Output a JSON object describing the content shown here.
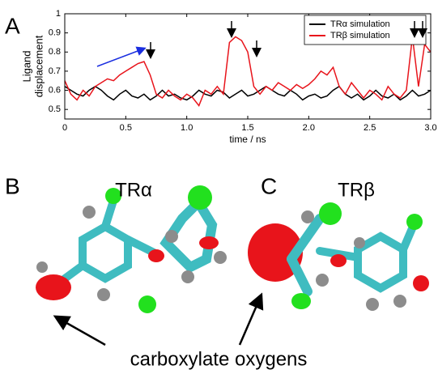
{
  "panel_labels": [
    "A",
    "B",
    "C"
  ],
  "chart_data": {
    "type": "line",
    "xlabel": "time / ns",
    "ylabel": [
      "Ligand",
      "displacement"
    ],
    "xlim": [
      0,
      3.0
    ],
    "ylim": [
      0.45,
      1.0
    ],
    "xticks": [
      0,
      0.5,
      {
        "value": 1,
        "label": "1.0"
      },
      1.5,
      {
        "value": 2,
        "label": "2.0"
      },
      2.5,
      {
        "value": 3,
        "label": "3.0"
      }
    ],
    "yticks": [
      0.5,
      0.6,
      0.7,
      0.8,
      0.9,
      1
    ],
    "legend": "upper right",
    "x": [
      0,
      0.05,
      0.1,
      0.15,
      0.2,
      0.25,
      0.3,
      0.35,
      0.4,
      0.45,
      0.5,
      0.55,
      0.6,
      0.65,
      0.7,
      0.75,
      0.8,
      0.85,
      0.9,
      0.95,
      1,
      1.05,
      1.1,
      1.15,
      1.2,
      1.25,
      1.3,
      1.35,
      1.4,
      1.45,
      1.5,
      1.55,
      1.6,
      1.65,
      1.7,
      1.75,
      1.8,
      1.85,
      1.9,
      1.95,
      2,
      2.05,
      2.1,
      2.15,
      2.2,
      2.25,
      2.3,
      2.35,
      2.4,
      2.45,
      2.5,
      2.55,
      2.6,
      2.65,
      2.7,
      2.75,
      2.8,
      2.85,
      2.9,
      2.95,
      3
    ],
    "series": [
      {
        "name": "TRα simulation",
        "color": "#000000",
        "values": [
          0.62,
          0.6,
          0.58,
          0.57,
          0.6,
          0.62,
          0.6,
          0.57,
          0.55,
          0.58,
          0.6,
          0.57,
          0.56,
          0.58,
          0.55,
          0.57,
          0.6,
          0.57,
          0.58,
          0.56,
          0.55,
          0.57,
          0.6,
          0.58,
          0.57,
          0.6,
          0.59,
          0.56,
          0.58,
          0.6,
          0.57,
          0.58,
          0.6,
          0.62,
          0.6,
          0.58,
          0.57,
          0.6,
          0.58,
          0.55,
          0.57,
          0.58,
          0.56,
          0.57,
          0.6,
          0.62,
          0.58,
          0.56,
          0.58,
          0.55,
          0.57,
          0.6,
          0.57,
          0.56,
          0.58,
          0.55,
          0.57,
          0.6,
          0.57,
          0.58,
          0.6
        ]
      },
      {
        "name": "TRβ simulation",
        "color": "#e8141b",
        "values": [
          0.65,
          0.58,
          0.55,
          0.6,
          0.57,
          0.62,
          0.64,
          0.66,
          0.65,
          0.68,
          0.7,
          0.72,
          0.74,
          0.75,
          0.68,
          0.58,
          0.56,
          0.6,
          0.57,
          0.55,
          0.58,
          0.56,
          0.52,
          0.6,
          0.58,
          0.62,
          0.58,
          0.85,
          0.88,
          0.86,
          0.8,
          0.62,
          0.58,
          0.62,
          0.6,
          0.64,
          0.62,
          0.6,
          0.63,
          0.61,
          0.63,
          0.66,
          0.7,
          0.68,
          0.72,
          0.62,
          0.58,
          0.64,
          0.6,
          0.56,
          0.6,
          0.58,
          0.55,
          0.62,
          0.58,
          0.56,
          0.6,
          0.88,
          0.62,
          0.84,
          0.8
        ]
      }
    ]
  },
  "molecules": [
    {
      "title": "TRα"
    },
    {
      "title": "TRβ"
    }
  ],
  "caption": "carboxylate oxygens"
}
